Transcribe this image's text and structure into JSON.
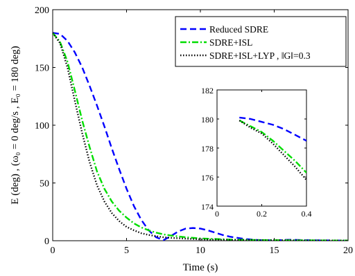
{
  "chart_data": [
    {
      "type": "line",
      "xlabel": "Time (s)",
      "ylabel": "E (deg)  ,  (ω₀ = 0 deg/s , E₀ = 180 deg)",
      "xlim": [
        0,
        20
      ],
      "ylim": [
        0,
        200
      ],
      "xticks": [
        "0",
        "5",
        "10",
        "15",
        "20"
      ],
      "yticks": [
        "0",
        "50",
        "100",
        "150",
        "200"
      ],
      "legend_position": "top-right",
      "series": [
        {
          "name": "Reduced SDRE",
          "color": "#0000ff",
          "style": "dashed",
          "x": [
            0,
            0.5,
            1,
            1.5,
            2,
            2.5,
            3,
            3.5,
            4,
            4.5,
            5,
            5.5,
            6,
            6.5,
            7,
            7.5,
            8,
            8.5,
            9,
            9.5,
            10,
            10.5,
            11,
            11.5,
            12,
            13,
            14,
            15,
            16,
            17,
            18,
            19,
            20
          ],
          "values": [
            180,
            179,
            173,
            163,
            150,
            134,
            117,
            99,
            80,
            62,
            45,
            30,
            18,
            9,
            3,
            0.5,
            4,
            8,
            10.5,
            11,
            10.5,
            9,
            7,
            5,
            3.5,
            1.5,
            0.5,
            0.3,
            0.8,
            0.5,
            0.3,
            0.2,
            0.1
          ]
        },
        {
          "name": "SDRE+ISL",
          "color": "#00dd00",
          "style": "dashdot",
          "x": [
            0,
            0.5,
            1,
            1.5,
            2,
            2.5,
            3,
            3.5,
            4,
            4.5,
            5,
            5.5,
            6,
            6.5,
            7,
            7.5,
            8,
            9,
            10,
            11,
            12,
            13,
            14,
            15,
            16,
            17,
            18,
            19,
            20
          ],
          "values": [
            180,
            172,
            155,
            130,
            104,
            81,
            60,
            45,
            34,
            26,
            20,
            15,
            11.5,
            9,
            7,
            5.5,
            4.5,
            3,
            2,
            1.5,
            1,
            0.8,
            0.6,
            0.5,
            0.4,
            0.3,
            0.3,
            0.2,
            0.2
          ]
        },
        {
          "name": "SDRE+ISL+LYP ,  ‖G‖=0.3",
          "color": "#000000",
          "style": "dotted",
          "x": [
            0,
            0.5,
            1,
            1.5,
            2,
            2.5,
            3,
            3.5,
            4,
            4.5,
            5,
            5.5,
            6,
            6.5,
            7,
            7.5,
            8,
            9,
            10,
            11,
            12,
            13,
            14,
            15,
            16,
            17,
            18,
            19,
            20
          ],
          "values": [
            180,
            171,
            150,
            121,
            93,
            68,
            48,
            34,
            24,
            17,
            12,
            9,
            6.5,
            5,
            4,
            3,
            2.5,
            1.8,
            1.2,
            0.9,
            0.7,
            0.5,
            0.4,
            0.3,
            0.3,
            0.2,
            0.2,
            0.2,
            0.1
          ]
        }
      ]
    },
    {
      "type": "line",
      "role": "inset",
      "xlim": [
        0,
        0.4
      ],
      "ylim": [
        174,
        182
      ],
      "xticks": [
        "0",
        "0.2",
        "0.4"
      ],
      "yticks": [
        "174",
        "176",
        "178",
        "180",
        "182"
      ],
      "series": [
        {
          "name": "Reduced SDRE",
          "color": "#0000ff",
          "style": "dashed",
          "x": [
            0.1,
            0.15,
            0.2,
            0.25,
            0.3,
            0.35,
            0.4
          ],
          "values": [
            180.1,
            180.0,
            179.8,
            179.6,
            179.3,
            178.9,
            178.5
          ]
        },
        {
          "name": "SDRE+ISL",
          "color": "#00dd00",
          "style": "dashdot",
          "x": [
            0.1,
            0.15,
            0.2,
            0.25,
            0.3,
            0.35,
            0.4
          ],
          "values": [
            179.9,
            179.5,
            179.1,
            178.5,
            177.8,
            177.1,
            176.3
          ]
        },
        {
          "name": "SDRE+ISL+LYP ,  ‖G‖=0.3",
          "color": "#000000",
          "style": "dotted",
          "x": [
            0.1,
            0.15,
            0.2,
            0.25,
            0.3,
            0.35,
            0.4
          ],
          "values": [
            179.9,
            179.4,
            179.0,
            178.3,
            177.5,
            176.7,
            175.8
          ]
        }
      ]
    }
  ]
}
